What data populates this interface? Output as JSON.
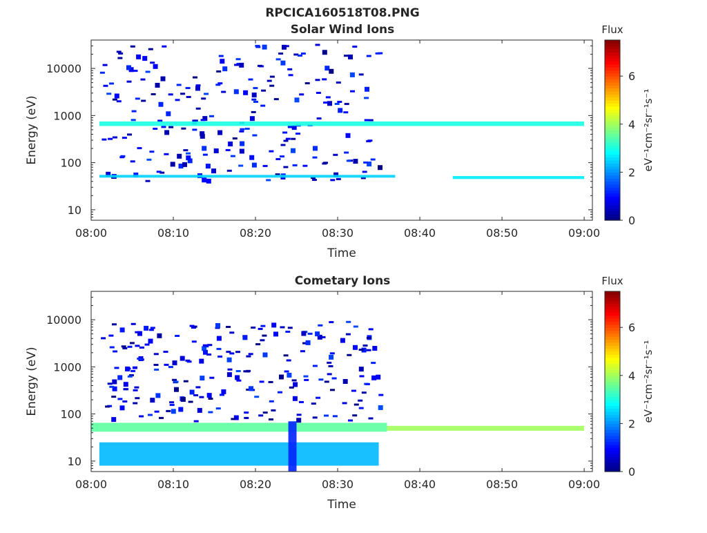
{
  "figure": {
    "title": "RPCICA160518T08.PNG"
  },
  "chart_data": [
    {
      "type": "heatmap",
      "title": "Solar Wind Ions",
      "xlabel": "Time",
      "ylabel": "Energy (eV)",
      "x_ticks": [
        "08:00",
        "08:10",
        "08:20",
        "08:30",
        "08:40",
        "08:50",
        "09:00"
      ],
      "x_range": [
        "08:00",
        "09:01"
      ],
      "y_scale": "log",
      "y_ticks": [
        "10",
        "100",
        "1000",
        "10000"
      ],
      "y_range": [
        6,
        40000
      ],
      "colorbar": {
        "title": "Flux",
        "label": "eV⁻¹cm⁻²sr⁻¹s⁻¹",
        "ticks": [
          "0",
          "2",
          "4",
          "6"
        ],
        "range": [
          0,
          7.5
        ],
        "colormap": "jet"
      },
      "grid": false,
      "legend": "none",
      "bands": [
        {
          "t_start": "08:01",
          "t_end": "08:35",
          "e_low": 600,
          "e_high": 750,
          "flux": 3.0
        },
        {
          "t_start": "08:35",
          "t_end": "09:00",
          "e_low": 600,
          "e_high": 750,
          "flux": 3.0
        },
        {
          "t_start": "08:01",
          "t_end": "08:37",
          "e_low": 48,
          "e_high": 55,
          "flux": 2.5
        },
        {
          "t_start": "08:44",
          "t_end": "09:00",
          "e_low": 45,
          "e_high": 52,
          "flux": 2.7
        }
      ],
      "sparse_flux_range": [
        0,
        1.5
      ],
      "sparse_window": [
        "08:01",
        "08:35"
      ],
      "sparse_energy_range": [
        40,
        35000
      ]
    },
    {
      "type": "heatmap",
      "title": "Cometary Ions",
      "xlabel": "Time",
      "ylabel": "Energy (eV)",
      "x_ticks": [
        "08:00",
        "08:10",
        "08:20",
        "08:30",
        "08:40",
        "08:50",
        "09:00"
      ],
      "x_range": [
        "08:00",
        "09:01"
      ],
      "y_scale": "log",
      "y_ticks": [
        "10",
        "100",
        "1000",
        "10000"
      ],
      "y_range": [
        6,
        40000
      ],
      "colorbar": {
        "title": "Flux",
        "label": "eV⁻¹cm⁻²sr⁻¹s⁻¹",
        "ticks": [
          "0",
          "2",
          "4",
          "6"
        ],
        "range": [
          0,
          7.5
        ],
        "colormap": "jet"
      },
      "grid": false,
      "legend": "none",
      "bands": [
        {
          "t_start": "08:00",
          "t_end": "08:36",
          "e_low": 42,
          "e_high": 65,
          "flux": 3.5
        },
        {
          "t_start": "08:36",
          "t_end": "09:00",
          "e_low": 44,
          "e_high": 56,
          "flux": 4.0
        },
        {
          "t_start": "08:01",
          "t_end": "08:35",
          "e_low": 8,
          "e_high": 25,
          "flux": 2.3
        },
        {
          "t_start": "08:24",
          "t_end": "08:25",
          "e_low": 6,
          "e_high": 70,
          "flux": 1.2
        }
      ],
      "sparse_flux_range": [
        0,
        1.5
      ],
      "sparse_window": [
        "08:01",
        "08:35"
      ],
      "sparse_energy_range": [
        70,
        9000
      ]
    }
  ]
}
